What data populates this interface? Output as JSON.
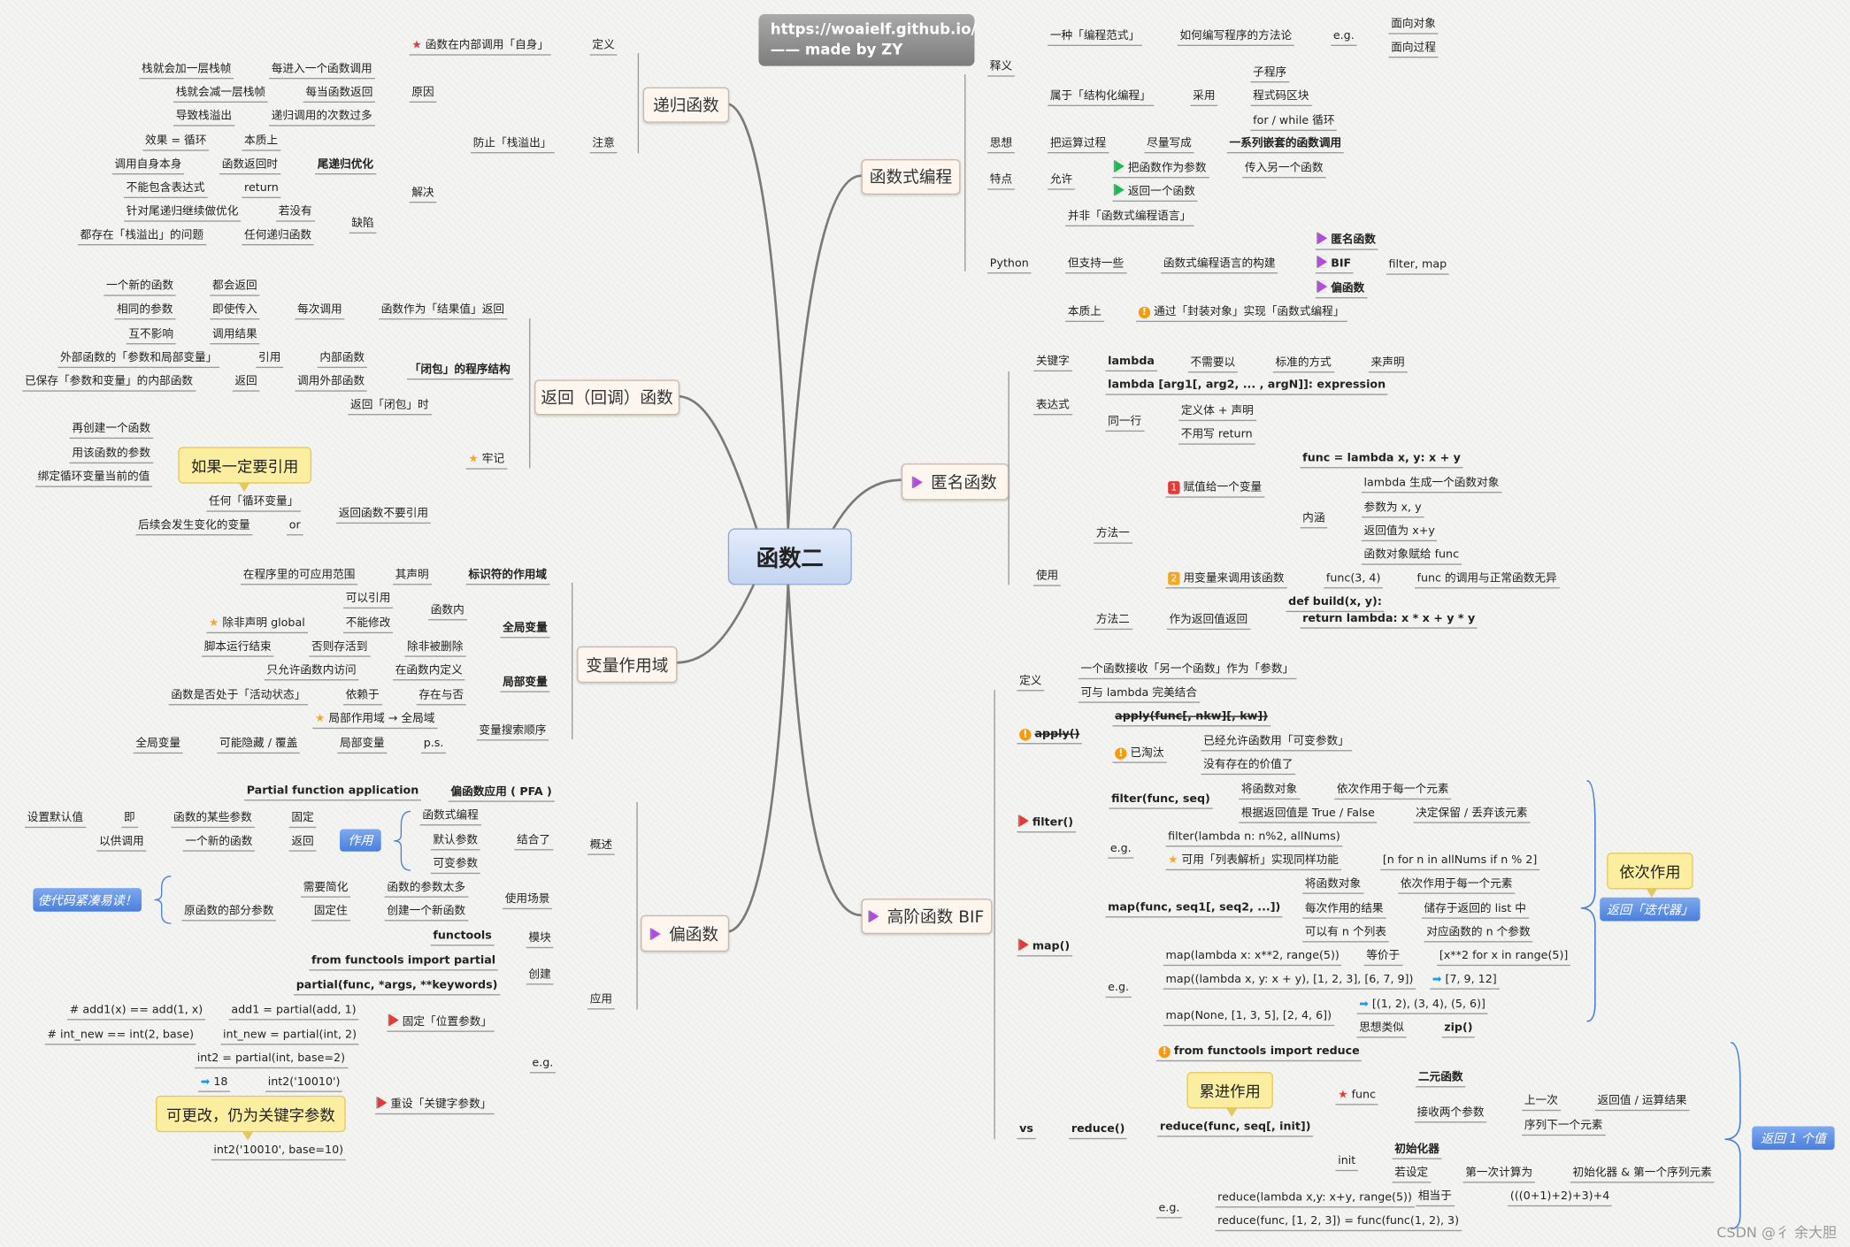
{
  "banner": {
    "line1": "https://woaielf.github.io/",
    "line2": "—— made by ZY"
  },
  "center": "函数二",
  "watermark": "CSDN @彳 余大胆",
  "branches": {
    "recursion": {
      "title": "递归函数",
      "nodes": [
        {
          "t": "函数在内部调用「自身」",
          "icon": "red-star"
        },
        {
          "t": "定义"
        },
        {
          "t": "栈就会加一层栈帧"
        },
        {
          "t": "每进入一个函数调用"
        },
        {
          "t": "栈就会减一层栈帧"
        },
        {
          "t": "每当函数返回"
        },
        {
          "t": "原因"
        },
        {
          "t": "导致栈溢出"
        },
        {
          "t": "递归调用的次数过多"
        },
        {
          "t": "防止「栈溢出」"
        },
        {
          "t": "注意"
        },
        {
          "t": "效果 = 循环"
        },
        {
          "t": "本质上"
        },
        {
          "t": "调用自身本身"
        },
        {
          "t": "函数返回时"
        },
        {
          "t": "尾递归优化"
        },
        {
          "t": "不能包含表达式"
        },
        {
          "t": "return"
        },
        {
          "t": "解决"
        },
        {
          "t": "针对尾递归继续做优化"
        },
        {
          "t": "若没有"
        },
        {
          "t": "都存在「栈溢出」的问题"
        },
        {
          "t": "任何递归函数"
        },
        {
          "t": "缺陷"
        }
      ]
    },
    "return_func": {
      "title": "返回（回调）函数",
      "callout": "如果一定要引用",
      "nodes": [
        {
          "t": "一个新的函数"
        },
        {
          "t": "都会返回"
        },
        {
          "t": "相同的参数"
        },
        {
          "t": "即使传入"
        },
        {
          "t": "每次调用"
        },
        {
          "t": "函数作为「结果值」返回"
        },
        {
          "t": "互不影响"
        },
        {
          "t": "调用结果"
        },
        {
          "t": "外部函数的「参数和局部变量」"
        },
        {
          "t": "引用"
        },
        {
          "t": "内部函数"
        },
        {
          "t": "「闭包」的程序结构"
        },
        {
          "t": "已保存「参数和变量」的内部函数"
        },
        {
          "t": "返回"
        },
        {
          "t": "调用外部函数"
        },
        {
          "t": "返回「闭包」时"
        },
        {
          "t": "再创建一个函数"
        },
        {
          "t": "用该函数的参数"
        },
        {
          "t": "牢记",
          "icon": "gold-star"
        },
        {
          "t": "绑定循环变量当前的值"
        },
        {
          "t": "任何「循环变量」"
        },
        {
          "t": "返回函数不要引用"
        },
        {
          "t": "后续会发生变化的变量"
        },
        {
          "t": "or"
        }
      ]
    },
    "scope": {
      "title": "变量作用域",
      "nodes": [
        {
          "t": "在程序里的可应用范围"
        },
        {
          "t": "其声明"
        },
        {
          "t": "标识符的作用域"
        },
        {
          "t": "可以引用"
        },
        {
          "t": "除非声明 global",
          "icon": "gold-star"
        },
        {
          "t": "不能修改"
        },
        {
          "t": "函数内"
        },
        {
          "t": "全局变量"
        },
        {
          "t": "脚本运行结束"
        },
        {
          "t": "否则存活到"
        },
        {
          "t": "除非被删除"
        },
        {
          "t": "只允许函数内访问"
        },
        {
          "t": "在函数内定义"
        },
        {
          "t": "函数是否处于「活动状态」"
        },
        {
          "t": "依赖于"
        },
        {
          "t": "存在与否"
        },
        {
          "t": "局部变量"
        },
        {
          "t": "局部作用域 → 全局域",
          "icon": "gold-star"
        },
        {
          "t": "变量搜索顺序"
        },
        {
          "t": "全局变量"
        },
        {
          "t": "可能隐藏 / 覆盖"
        },
        {
          "t": "局部变量"
        },
        {
          "t": "p.s."
        }
      ]
    },
    "partial": {
      "title": "偏函数",
      "icon": "purple-flag",
      "tag_role": "作用",
      "tag_benefit": "使代码紧凑易读！",
      "callout": "可更改，仍为关键字参数",
      "nodes": [
        {
          "t": "Partial function application"
        },
        {
          "t": "偏函数应用 ( PFA )"
        },
        {
          "t": "设置默认值"
        },
        {
          "t": "即"
        },
        {
          "t": "函数的某些参数"
        },
        {
          "t": "固定"
        },
        {
          "t": "函数式编程"
        },
        {
          "t": "默认参数"
        },
        {
          "t": "结合了"
        },
        {
          "t": "可变参数"
        },
        {
          "t": "概述"
        },
        {
          "t": "以供调用"
        },
        {
          "t": "一个新的函数"
        },
        {
          "t": "返回"
        },
        {
          "t": "需要简化"
        },
        {
          "t": "函数的参数太多"
        },
        {
          "t": "原函数的部分参数"
        },
        {
          "t": "固定住"
        },
        {
          "t": "创建一个新函数"
        },
        {
          "t": "使用场景"
        },
        {
          "t": "functools"
        },
        {
          "t": "模块"
        },
        {
          "t": "from functools import partial"
        },
        {
          "t": "创建"
        },
        {
          "t": "partial(func, *args, **keywords)"
        },
        {
          "t": "应用"
        },
        {
          "t": "# add1(x) == add(1, x)"
        },
        {
          "t": "add1 = partial(add, 1)"
        },
        {
          "t": "固定「位置参数」",
          "icon": "red-flag"
        },
        {
          "t": "# int_new == int(2, base)"
        },
        {
          "t": "int_new = partial(int, 2)"
        },
        {
          "t": "int2 = partial(int, base=2)"
        },
        {
          "t": "e.g."
        },
        {
          "t": "18",
          "icon": "blue-arrow"
        },
        {
          "t": "int2('10010')"
        },
        {
          "t": "重设「关键字参数」",
          "icon": "red-flag"
        },
        {
          "t": "int2('10010', base=10)"
        }
      ]
    },
    "functional": {
      "title": "函数式编程",
      "nodes": [
        {
          "t": "释义"
        },
        {
          "t": "一种「编程范式」"
        },
        {
          "t": "如何编写程序的方法论"
        },
        {
          "t": "e.g."
        },
        {
          "t": "面向对象"
        },
        {
          "t": "面向过程"
        },
        {
          "t": "属于「结构化编程」"
        },
        {
          "t": "采用"
        },
        {
          "t": "子程序"
        },
        {
          "t": "程式码区块"
        },
        {
          "t": "for / while 循环"
        },
        {
          "t": "思想"
        },
        {
          "t": "把运算过程"
        },
        {
          "t": "尽量写成"
        },
        {
          "t": "一系列嵌套的函数调用"
        },
        {
          "t": "特点"
        },
        {
          "t": "允许"
        },
        {
          "t": "把函数作为参数",
          "icon": "green-flag"
        },
        {
          "t": "传入另一个函数"
        },
        {
          "t": "返回一个函数",
          "icon": "green-flag"
        },
        {
          "t": "并非「函数式编程语言」"
        },
        {
          "t": "Python"
        },
        {
          "t": "但支持一些"
        },
        {
          "t": "函数式编程语言的构建"
        },
        {
          "t": "匿名函数",
          "icon": "purple-flag"
        },
        {
          "t": "BIF",
          "icon": "purple-flag"
        },
        {
          "t": "filter, map"
        },
        {
          "t": "偏函数",
          "icon": "purple-flag"
        },
        {
          "t": "本质上"
        },
        {
          "t": "通过「封装对象」实现「函数式编程」",
          "icon": "info"
        }
      ]
    },
    "lambda": {
      "title": "匿名函数",
      "icon": "purple-flag",
      "nodes": [
        {
          "t": "关键字"
        },
        {
          "t": "lambda"
        },
        {
          "t": "不需要以"
        },
        {
          "t": "标准的方式"
        },
        {
          "t": "来声明"
        },
        {
          "t": "lambda [arg1[, arg2, ... , argN]]: expression"
        },
        {
          "t": "表达式"
        },
        {
          "t": "同一行"
        },
        {
          "t": "定义体 + 声明"
        },
        {
          "t": "不用写 return"
        },
        {
          "t": "func = lambda x, y: x + y"
        },
        {
          "t": "赋值给一个变量",
          "icon": "num-1"
        },
        {
          "t": "lambda 生成一个函数对象"
        },
        {
          "t": "内涵"
        },
        {
          "t": "参数为 x, y"
        },
        {
          "t": "返回值为 x+y"
        },
        {
          "t": "函数对象赋给 func"
        },
        {
          "t": "方法一"
        },
        {
          "t": "使用"
        },
        {
          "t": "用变量来调用该函数",
          "icon": "num-2"
        },
        {
          "t": "func(3, 4)"
        },
        {
          "t": "func 的调用与正常函数无异"
        },
        {
          "t": "def build(x, y):"
        },
        {
          "t": "return lambda: x * x + y * y"
        },
        {
          "t": "方法二"
        },
        {
          "t": "作为返回值返回"
        }
      ]
    },
    "bif": {
      "title": "高阶函数 BIF",
      "icon": "purple-flag",
      "callout_map": "依次作用",
      "tag_iter": "返回「迭代器」",
      "callout_reduce": "累进作用",
      "tag_one": "返回 1 个值",
      "nodes": [
        {
          "t": "定义"
        },
        {
          "t": "一个函数接收「另一个函数」作为「参数」"
        },
        {
          "t": "可与 lambda 完美结合"
        },
        {
          "t": "apply(func[, nkw][, kw])"
        },
        {
          "t": "apply()",
          "icon": "info"
        },
        {
          "t": "已淘汰",
          "icon": "info"
        },
        {
          "t": "已经允许函数用「可变参数」"
        },
        {
          "t": "没有存在的价值了"
        },
        {
          "t": "filter(func, seq)"
        },
        {
          "t": "将函数对象"
        },
        {
          "t": "依次作用于每一个元素"
        },
        {
          "t": "根据返回值是 True / False"
        },
        {
          "t": "决定保留 / 丢弃该元素"
        },
        {
          "t": "filter()",
          "icon": "red-flag"
        },
        {
          "t": "e.g."
        },
        {
          "t": "filter(lambda n: n%2, allNums)"
        },
        {
          "t": "可用「列表解析」实现同样功能",
          "icon": "gold-star"
        },
        {
          "t": "[n for n in allNums if n % 2]"
        },
        {
          "t": "map(func, seq1[, seq2, ...])"
        },
        {
          "t": "将函数对象"
        },
        {
          "t": "依次作用于每一个元素"
        },
        {
          "t": "每次作用的结果"
        },
        {
          "t": "储存于返回的 list 中"
        },
        {
          "t": "可以有 n 个列表"
        },
        {
          "t": "对应函数的 n 个参数"
        },
        {
          "t": "map()",
          "icon": "red-flag"
        },
        {
          "t": "map(lambda x: x**2, range(5))"
        },
        {
          "t": "等价于"
        },
        {
          "t": "[x**2 for x in range(5)]"
        },
        {
          "t": "e.g."
        },
        {
          "t": "map((lambda x, y: x + y), [1, 2, 3], [6, 7, 9])"
        },
        {
          "t": "[7, 9, 12]",
          "icon": "blue-arrow"
        },
        {
          "t": "[(1, 2), (3, 4), (5, 6)]",
          "icon": "blue-arrow"
        },
        {
          "t": "map(None, [1, 3, 5], [2, 4, 6])"
        },
        {
          "t": "思想类似"
        },
        {
          "t": "zip()"
        },
        {
          "t": "from functools import reduce",
          "icon": "info"
        },
        {
          "t": "func",
          "icon": "red-star"
        },
        {
          "t": "二元函数"
        },
        {
          "t": "上一次"
        },
        {
          "t": "返回值 / 运算结果"
        },
        {
          "t": "接收两个参数"
        },
        {
          "t": "序列下一个元素"
        },
        {
          "t": "vs"
        },
        {
          "t": "reduce()"
        },
        {
          "t": "reduce(func, seq[, init])"
        },
        {
          "t": "初始化器"
        },
        {
          "t": "init"
        },
        {
          "t": "若设定"
        },
        {
          "t": "第一次计算为"
        },
        {
          "t": "初始化器 & 第一个序列元素"
        },
        {
          "t": "reduce(lambda x,y: x+y, range(5))"
        },
        {
          "t": "相当于"
        },
        {
          "t": "(((0+1)+2)+3)+4"
        },
        {
          "t": "e.g."
        },
        {
          "t": "reduce(func, [1, 2, 3]) = func(func(1, 2), 3)"
        }
      ]
    }
  },
  "colors": {
    "flag_red": "#e53935",
    "flag_green": "#1db954",
    "flag_purple": "#b44be1",
    "star_red": "#e53935",
    "star_gold": "#f5a623",
    "info": "#f39c12",
    "arrow_blue": "#1e9be8",
    "center_fill": "#c9d9f3",
    "callout": "#fbeea0",
    "tag_blue": "#5b8ee4"
  }
}
